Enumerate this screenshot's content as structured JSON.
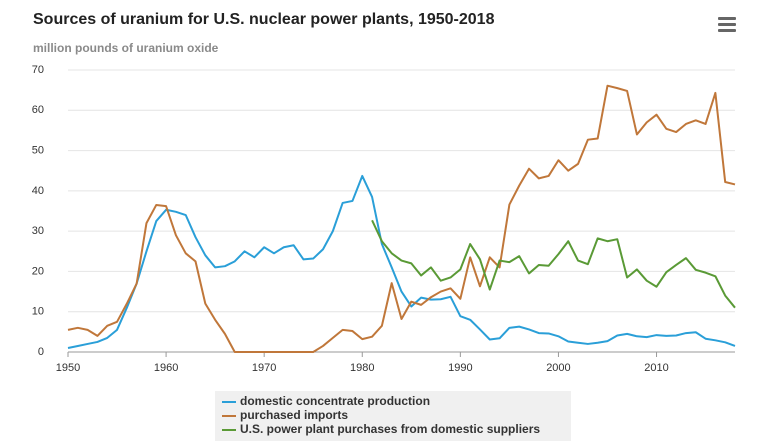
{
  "chart_data": {
    "type": "line",
    "title": "Sources of uranium for U.S. nuclear power plants, 1950-2018",
    "subtitle": "million pounds of uranium oxide",
    "x": [
      1950,
      1951,
      1952,
      1953,
      1954,
      1955,
      1956,
      1957,
      1958,
      1959,
      1960,
      1961,
      1962,
      1963,
      1964,
      1965,
      1966,
      1967,
      1968,
      1969,
      1970,
      1971,
      1972,
      1973,
      1974,
      1975,
      1976,
      1977,
      1978,
      1979,
      1980,
      1981,
      1982,
      1983,
      1984,
      1985,
      1986,
      1987,
      1988,
      1989,
      1990,
      1991,
      1992,
      1993,
      1994,
      1995,
      1996,
      1997,
      1998,
      1999,
      2000,
      2001,
      2002,
      2003,
      2004,
      2005,
      2006,
      2007,
      2008,
      2009,
      2010,
      2011,
      2012,
      2013,
      2014,
      2015,
      2016,
      2017,
      2018
    ],
    "xlim": [
      1950,
      2018
    ],
    "xticks": [
      1950,
      1960,
      1970,
      1980,
      1990,
      2000,
      2010
    ],
    "ylim": [
      0,
      70
    ],
    "yticks": [
      0,
      10,
      20,
      30,
      40,
      50,
      60,
      70
    ],
    "grid": true,
    "series": [
      {
        "name": "domestic concentrate production",
        "color": "#2a9fd8",
        "values": [
          1,
          1.5,
          2,
          2.5,
          3.5,
          5.5,
          11,
          17,
          25,
          32.5,
          35.3,
          34.8,
          34,
          28.5,
          24,
          21,
          21.3,
          22.5,
          25,
          23.5,
          26,
          24.5,
          26,
          26.5,
          23,
          23.2,
          25.5,
          30,
          37,
          37.5,
          43.7,
          38.5,
          26.8,
          21,
          15,
          11.3,
          13.5,
          13,
          13.1,
          13.7,
          8.9,
          8,
          5.6,
          3.1,
          3.4,
          6,
          6.3,
          5.6,
          4.7,
          4.6,
          3.9,
          2.6,
          2.3,
          2,
          2.3,
          2.7,
          4.1,
          4.5,
          3.9,
          3.7,
          4.2,
          4,
          4.1,
          4.7,
          4.9,
          3.3,
          2.9,
          2.4,
          1.5
        ]
      },
      {
        "name": "purchased imports",
        "color": "#c0773a",
        "values": [
          5.5,
          6,
          5.5,
          4,
          6.5,
          7.5,
          12,
          17,
          32,
          36.5,
          36.2,
          29,
          24.5,
          22.5,
          12,
          8,
          4.5,
          0,
          0,
          0,
          0,
          0,
          0,
          0,
          0,
          0,
          1.5,
          3.5,
          5.5,
          5.2,
          3.2,
          3.8,
          6.5,
          17.1,
          8.2,
          12.5,
          11.7,
          13.6,
          15,
          15.8,
          13.2,
          23.5,
          16.3,
          23.5,
          21,
          36.6,
          41.3,
          45.5,
          43.1,
          43.7,
          47.6,
          45,
          46.7,
          52.7,
          53,
          66.1,
          65.5,
          64.8,
          54,
          57,
          58.9,
          55.4,
          54.6,
          56.6,
          57.5,
          56.6,
          64.3,
          42.2,
          41.6
        ]
      },
      {
        "name": "U.S. power plant purchases from domestic suppliers",
        "color": "#5a9a36",
        "values": [
          null,
          null,
          null,
          null,
          null,
          null,
          null,
          null,
          null,
          null,
          null,
          null,
          null,
          null,
          null,
          null,
          null,
          null,
          null,
          null,
          null,
          null,
          null,
          null,
          null,
          null,
          null,
          null,
          null,
          null,
          null,
          32.7,
          27.5,
          24.5,
          22.7,
          22,
          19,
          21,
          17.7,
          18.5,
          20.5,
          26.8,
          23,
          15.5,
          22.7,
          22.3,
          23.8,
          19.5,
          21.6,
          21.4,
          24.3,
          27.5,
          22.7,
          21.8,
          28.2,
          27.5,
          28,
          18.5,
          20.5,
          17.7,
          16.2,
          19.8,
          21.6,
          23.3,
          20.4,
          19.7,
          18.8,
          14,
          11
        ]
      }
    ]
  }
}
